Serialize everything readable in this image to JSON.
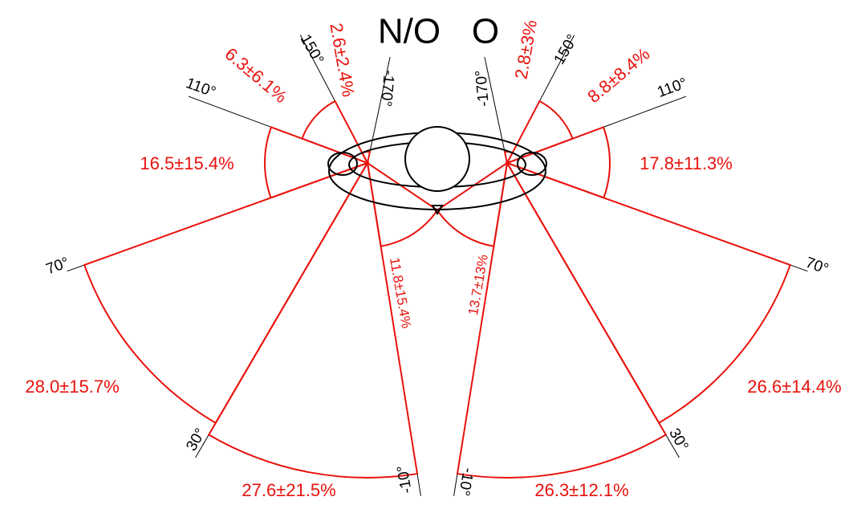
{
  "panels": [
    {
      "title": "N/O",
      "angles": [
        "110°",
        "150°",
        "-170°",
        "70°",
        "30°",
        "-10°"
      ],
      "sectors": [
        "6.3±6.1%",
        "2.6±2.4%",
        "16.5±15.4%",
        "28.0±15.7%",
        "27.6±21.5%",
        "11.8±15.4%"
      ]
    },
    {
      "title": "O",
      "angles": [
        "110°",
        "150°",
        "-170°",
        "70°",
        "30°",
        "-10°"
      ],
      "sectors": [
        "8.8±8.4%",
        "2.8±3%",
        "17.8±11.3%",
        "26.6±14.4%",
        "26.3±12.1%",
        "13.7±13%"
      ]
    }
  ]
}
